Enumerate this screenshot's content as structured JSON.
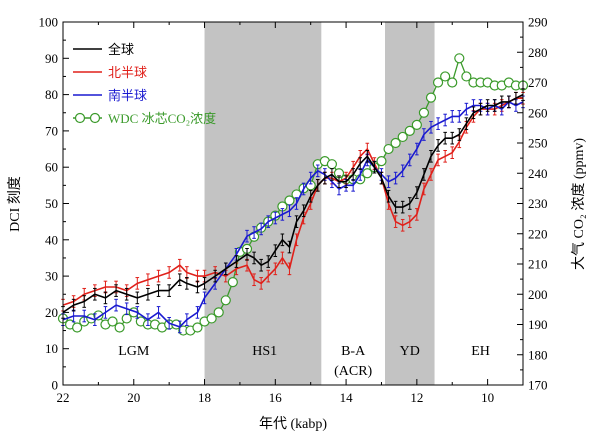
{
  "chart_data": {
    "type": "line",
    "xlabel": "年代 (kabp)",
    "ylabel_left": "DCI 刻度",
    "ylabel_right": "大气 CO₂ 浓度 (ppmv)",
    "xlim": [
      22,
      9
    ],
    "ylim_left": [
      0,
      100
    ],
    "ylim_right": [
      170,
      290
    ],
    "x_ticks": [
      "22",
      "20",
      "18",
      "16",
      "14",
      "12",
      "10"
    ],
    "y_ticks_left": [
      "0",
      "10",
      "20",
      "30",
      "40",
      "50",
      "60",
      "70",
      "80",
      "90",
      "100"
    ],
    "y_ticks_right": [
      "170",
      "180",
      "190",
      "200",
      "210",
      "220",
      "230",
      "240",
      "250",
      "260",
      "270",
      "280",
      "290"
    ],
    "shaded_periods": [
      {
        "from": 18.0,
        "to": 14.7
      },
      {
        "from": 12.9,
        "to": 11.5
      }
    ],
    "period_labels": [
      {
        "text": "LGM",
        "x": 20.0
      },
      {
        "text": "HS1",
        "x": 16.3
      },
      {
        "text": "B-A",
        "x": 13.8
      },
      {
        "text": "(ACR)",
        "x": 13.8
      },
      {
        "text": "YD",
        "x": 12.2
      },
      {
        "text": "EH",
        "x": 10.2
      }
    ],
    "legend": [
      "全球",
      "北半球",
      "南半球",
      "WDC 冰芯CO₂浓度"
    ],
    "colors": {
      "global": "#000000",
      "nh": "#e0201a",
      "sh": "#1a1ad0",
      "co2": "#3a9a2a",
      "shade": "#c3c3c3"
    },
    "series": [
      {
        "name": "全球",
        "axis": "left",
        "x": [
          22.0,
          21.7,
          21.4,
          21.1,
          20.8,
          20.5,
          20.2,
          19.9,
          19.6,
          19.3,
          19.0,
          18.7,
          18.5,
          18.2,
          18.0,
          17.7,
          17.4,
          17.1,
          16.8,
          16.6,
          16.4,
          16.2,
          16.0,
          15.8,
          15.6,
          15.4,
          15.2,
          15.0,
          14.8,
          14.6,
          14.4,
          14.2,
          14.0,
          13.8,
          13.6,
          13.4,
          13.2,
          13.0,
          12.8,
          12.6,
          12.4,
          12.2,
          12.0,
          11.8,
          11.6,
          11.4,
          11.2,
          11.0,
          10.8,
          10.6,
          10.4,
          10.2,
          10.0,
          9.8,
          9.6,
          9.4,
          9.2,
          9.0
        ],
        "y": [
          20,
          22,
          23,
          25,
          24,
          26,
          25,
          24,
          25,
          26,
          26,
          29,
          28,
          27,
          28,
          30,
          32,
          34,
          36,
          35,
          33,
          34,
          37,
          40,
          38,
          45,
          48,
          52,
          55,
          57,
          58,
          56,
          56,
          58,
          61,
          63,
          60,
          57,
          52,
          49,
          49,
          50,
          53,
          58,
          63,
          66,
          68,
          68,
          69,
          72,
          75,
          76,
          77,
          77,
          78,
          78,
          79,
          80
        ]
      },
      {
        "name": "北半球",
        "axis": "left",
        "x": [
          22.0,
          21.7,
          21.4,
          21.1,
          20.8,
          20.5,
          20.2,
          19.9,
          19.6,
          19.3,
          19.0,
          18.7,
          18.5,
          18.2,
          18.0,
          17.7,
          17.4,
          17.1,
          16.8,
          16.6,
          16.4,
          16.2,
          16.0,
          15.8,
          15.6,
          15.4,
          15.2,
          15.0,
          14.8,
          14.6,
          14.4,
          14.2,
          14.0,
          13.8,
          13.6,
          13.4,
          13.2,
          13.0,
          12.8,
          12.6,
          12.4,
          12.2,
          12.0,
          11.8,
          11.6,
          11.4,
          11.2,
          11.0,
          10.8,
          10.6,
          10.4,
          10.2,
          10.0,
          9.8,
          9.6,
          9.4,
          9.2,
          9.0
        ],
        "y": [
          22,
          23,
          25,
          26,
          27,
          27,
          26,
          28,
          29,
          30,
          31,
          33,
          31,
          30,
          30,
          31,
          30,
          32,
          33,
          29,
          28,
          30,
          32,
          35,
          32,
          40,
          46,
          50,
          55,
          57,
          57,
          56,
          57,
          60,
          63,
          65,
          61,
          57,
          50,
          45,
          44,
          45,
          47,
          54,
          58,
          62,
          63,
          64,
          67,
          71,
          74,
          76,
          76,
          76,
          77,
          78,
          79,
          79
        ]
      },
      {
        "name": "南半球",
        "axis": "left",
        "x": [
          22.0,
          21.7,
          21.4,
          21.1,
          20.8,
          20.5,
          20.2,
          19.9,
          19.6,
          19.3,
          19.0,
          18.7,
          18.5,
          18.2,
          18.0,
          17.7,
          17.4,
          17.1,
          16.8,
          16.6,
          16.4,
          16.2,
          16.0,
          15.8,
          15.6,
          15.4,
          15.2,
          15.0,
          14.8,
          14.6,
          14.4,
          14.2,
          14.0,
          13.8,
          13.6,
          13.4,
          13.2,
          13.0,
          12.8,
          12.6,
          12.4,
          12.2,
          12.0,
          11.8,
          11.6,
          11.4,
          11.2,
          11.0,
          10.8,
          10.6,
          10.4,
          10.2,
          10.0,
          9.8,
          9.6,
          9.4,
          9.2,
          9.0
        ],
        "y": [
          18,
          19,
          19,
          18,
          20,
          22,
          21,
          20,
          18,
          20,
          17,
          16,
          18,
          20,
          24,
          28,
          32,
          36,
          41,
          42,
          43,
          45,
          46,
          47,
          48,
          50,
          54,
          57,
          59,
          58,
          56,
          54,
          55,
          55,
          58,
          62,
          60,
          58,
          56,
          57,
          59,
          62,
          65,
          69,
          71,
          72,
          73,
          74,
          74,
          76,
          77,
          77,
          76,
          77,
          76,
          78,
          77,
          78
        ]
      },
      {
        "name": "WDC 冰芯CO₂浓度",
        "axis": "right",
        "marker": "circle",
        "x": [
          22.0,
          21.8,
          21.6,
          21.4,
          21.2,
          21.0,
          20.8,
          20.6,
          20.4,
          20.2,
          20.0,
          19.8,
          19.6,
          19.4,
          19.2,
          19.0,
          18.8,
          18.6,
          18.4,
          18.2,
          18.0,
          17.8,
          17.6,
          17.4,
          17.2,
          17.0,
          16.8,
          16.6,
          16.4,
          16.2,
          16.0,
          15.8,
          15.6,
          15.4,
          15.2,
          15.0,
          14.8,
          14.6,
          14.4,
          14.2,
          14.0,
          13.8,
          13.6,
          13.4,
          13.2,
          13.0,
          12.8,
          12.6,
          12.4,
          12.2,
          12.0,
          11.8,
          11.6,
          11.4,
          11.2,
          11.0,
          10.8,
          10.6,
          10.4,
          10.2,
          10.0,
          9.8,
          9.6,
          9.4,
          9.2,
          9.0
        ],
        "y": [
          192,
          190,
          189,
          191,
          192,
          193,
          190,
          191,
          189,
          192,
          194,
          191,
          190,
          190,
          189,
          190,
          190,
          188,
          188,
          189,
          191,
          192,
          194,
          198,
          204,
          214,
          215,
          219,
          222,
          224,
          226,
          229,
          231,
          233,
          235,
          236,
          243,
          244,
          243,
          240,
          238,
          238,
          238,
          240,
          242,
          244,
          248,
          250,
          252,
          254,
          256,
          260,
          265,
          270,
          272,
          270,
          278,
          272,
          270,
          270,
          270,
          269,
          269,
          270,
          269,
          269
        ]
      }
    ]
  }
}
